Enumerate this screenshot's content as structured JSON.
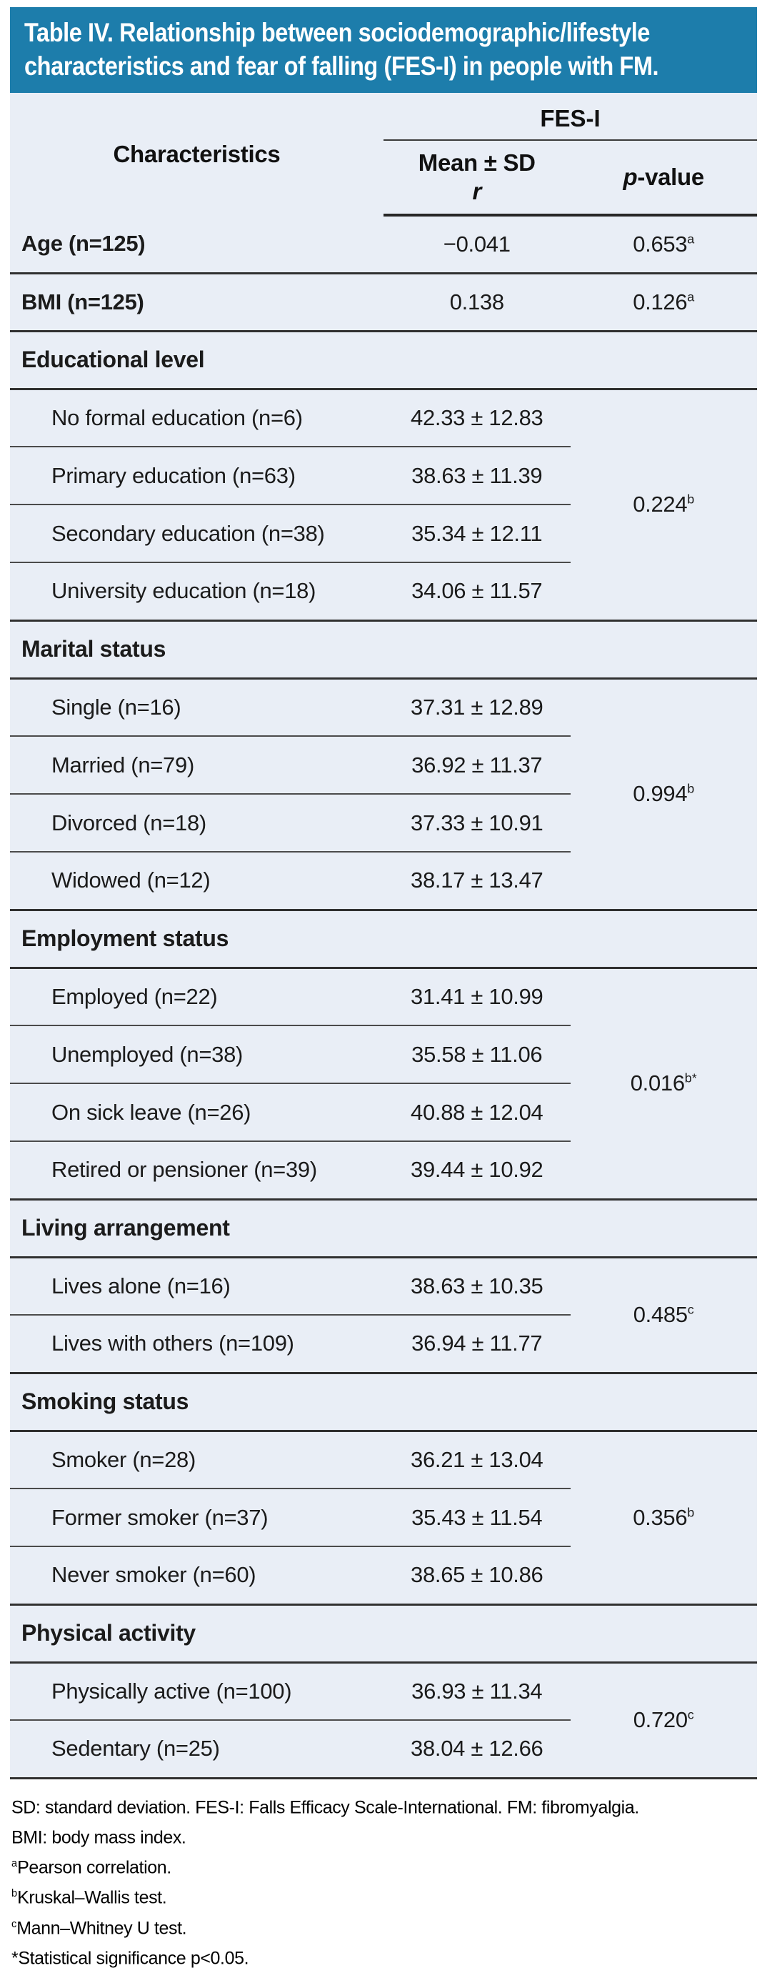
{
  "colors": {
    "accent_teal": "#1d7dab",
    "table_background": "#e9eef6"
  },
  "title": {
    "line1": "Table IV. Relationship between sociodemographic/lifestyle",
    "line2": "characteristics and fear of falling (FES-I) in people with FM."
  },
  "table": {
    "header": {
      "characteristics": "Characteristics",
      "fes_i": "FES-I",
      "mean_sd": "Mean ± SD",
      "r": "r",
      "p_value": "p-value"
    },
    "simple_rows": [
      {
        "label": "Age (n=125)",
        "value": "−0.041",
        "p": "0.653",
        "p_sup": "a"
      },
      {
        "label": "BMI (n=125)",
        "value": "0.138",
        "p": "0.126",
        "p_sup": "a"
      }
    ],
    "groups": [
      {
        "header": "Educational level",
        "p": "0.224",
        "p_sup": "b",
        "items": [
          {
            "label": "No formal education (n=6)",
            "value": "42.33 ± 12.83"
          },
          {
            "label": "Primary education (n=63)",
            "value": "38.63 ± 11.39"
          },
          {
            "label": "Secondary education (n=38)",
            "value": "35.34 ± 12.11"
          },
          {
            "label": "University education (n=18)",
            "value": "34.06 ± 11.57"
          }
        ]
      },
      {
        "header": "Marital status",
        "p": "0.994",
        "p_sup": "b",
        "items": [
          {
            "label": "Single (n=16)",
            "value": "37.31 ± 12.89"
          },
          {
            "label": "Married (n=79)",
            "value": "36.92 ± 11.37"
          },
          {
            "label": "Divorced (n=18)",
            "value": "37.33 ± 10.91"
          },
          {
            "label": "Widowed (n=12)",
            "value": "38.17 ± 13.47"
          }
        ]
      },
      {
        "header": "Employment status",
        "p": "0.016",
        "p_sup": "b*",
        "items": [
          {
            "label": "Employed (n=22)",
            "value": "31.41 ± 10.99"
          },
          {
            "label": "Unemployed (n=38)",
            "value": "35.58 ± 11.06"
          },
          {
            "label": "On sick leave (n=26)",
            "value": "40.88 ± 12.04"
          },
          {
            "label": "Retired or pensioner (n=39)",
            "value": "39.44 ± 10.92"
          }
        ]
      },
      {
        "header": "Living arrangement",
        "p": "0.485",
        "p_sup": "c",
        "items": [
          {
            "label": "Lives alone (n=16)",
            "value": "38.63 ± 10.35"
          },
          {
            "label": "Lives with others (n=109)",
            "value": "36.94 ± 11.77"
          }
        ]
      },
      {
        "header": "Smoking status",
        "p": "0.356",
        "p_sup": "b",
        "items": [
          {
            "label": "Smoker (n=28)",
            "value": "36.21 ± 13.04"
          },
          {
            "label": "Former smoker (n=37)",
            "value": "35.43 ± 11.54"
          },
          {
            "label": "Never smoker (n=60)",
            "value": "38.65 ± 10.86"
          }
        ]
      },
      {
        "header": "Physical activity",
        "p": "0.720",
        "p_sup": "c",
        "items": [
          {
            "label": "Physically active (n=100)",
            "value": "36.93 ± 11.34"
          },
          {
            "label": "Sedentary (n=25)",
            "value": "38.04 ± 12.66"
          }
        ]
      }
    ]
  },
  "footnotes": [
    {
      "sup": "",
      "text": "SD: standard deviation. FES-I: Falls Efficacy Scale-International. FM: fibromyalgia."
    },
    {
      "sup": "",
      "text": "BMI: body mass index."
    },
    {
      "sup": "a",
      "text": "Pearson correlation."
    },
    {
      "sup": "b",
      "text": "Kruskal–Wallis test."
    },
    {
      "sup": "c",
      "text": "Mann–Whitney U test."
    },
    {
      "sup": "",
      "text": "*Statistical significance p<0.05."
    }
  ]
}
